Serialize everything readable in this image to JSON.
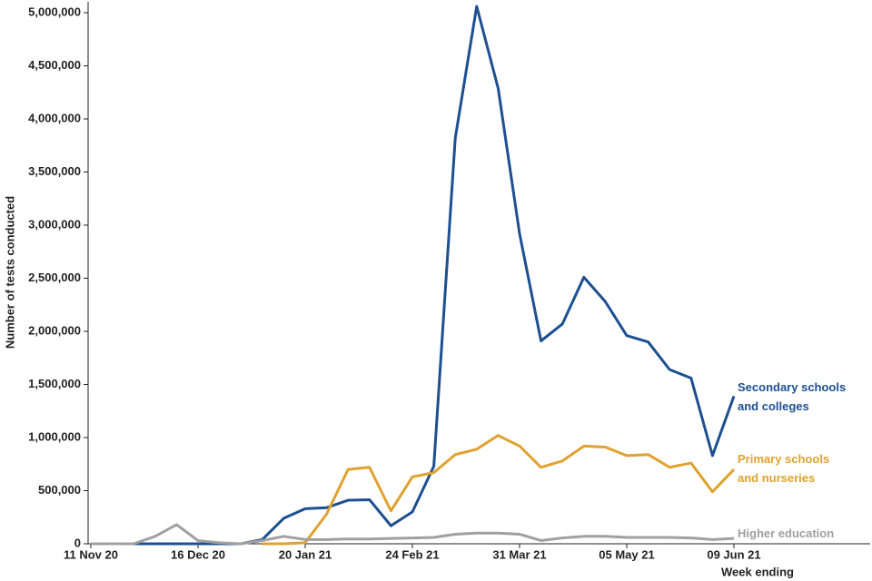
{
  "chart_data": {
    "type": "line",
    "y_label": "Number of tests conducted",
    "x_label": "Week ending",
    "categories": [
      "11 Nov 20",
      null,
      null,
      null,
      null,
      "16 Dec 20",
      null,
      null,
      null,
      null,
      "20 Jan 21",
      null,
      null,
      null,
      null,
      "24 Feb 21",
      null,
      null,
      null,
      null,
      "31 Mar 21",
      null,
      null,
      null,
      null,
      "05 May 21",
      null,
      null,
      null,
      null,
      "09 Jun 21"
    ],
    "series": [
      {
        "name": "Secondary schools and colleges",
        "color": "#1d4f91",
        "values": [
          0,
          0,
          0,
          0,
          0,
          0,
          0,
          0,
          40000,
          240000,
          330000,
          340000,
          410000,
          415000,
          170000,
          300000,
          730000,
          3820000,
          5060000,
          4290000,
          2920000,
          1910000,
          2070000,
          2510000,
          2280000,
          1960000,
          1900000,
          1640000,
          1560000,
          830000,
          1390000
        ]
      },
      {
        "name": "Primary schools and nurseries",
        "color": "#e0a22f",
        "values": [
          null,
          null,
          null,
          null,
          null,
          null,
          null,
          null,
          0,
          0,
          10000,
          280000,
          700000,
          720000,
          310000,
          630000,
          670000,
          840000,
          890000,
          1020000,
          920000,
          720000,
          780000,
          920000,
          910000,
          830000,
          840000,
          720000,
          760000,
          490000,
          700000
        ]
      },
      {
        "name": "Higher education",
        "color": "#a0a0a0",
        "values": [
          0,
          0,
          0,
          70000,
          180000,
          30000,
          10000,
          0,
          30000,
          70000,
          40000,
          40000,
          45000,
          45000,
          50000,
          55000,
          60000,
          90000,
          100000,
          100000,
          90000,
          30000,
          55000,
          70000,
          70000,
          60000,
          60000,
          60000,
          55000,
          40000,
          50000
        ]
      }
    ],
    "ylim": [
      0,
      5000000
    ],
    "yticks": [
      {
        "value": 0,
        "label": "0"
      },
      {
        "value": 500000,
        "label": "500,000"
      },
      {
        "value": 1000000,
        "label": "1,000,000"
      },
      {
        "value": 1500000,
        "label": "1,500,000"
      },
      {
        "value": 2000000,
        "label": "2,000,000"
      },
      {
        "value": 2500000,
        "label": "2,500,000"
      },
      {
        "value": 3000000,
        "label": "3,000,000"
      },
      {
        "value": 3500000,
        "label": "3,500,000"
      },
      {
        "value": 4000000,
        "label": "4,000,000"
      },
      {
        "value": 4500000,
        "label": "4,500,000"
      },
      {
        "value": 5000000,
        "label": "5,000,000"
      }
    ],
    "grid": false
  }
}
